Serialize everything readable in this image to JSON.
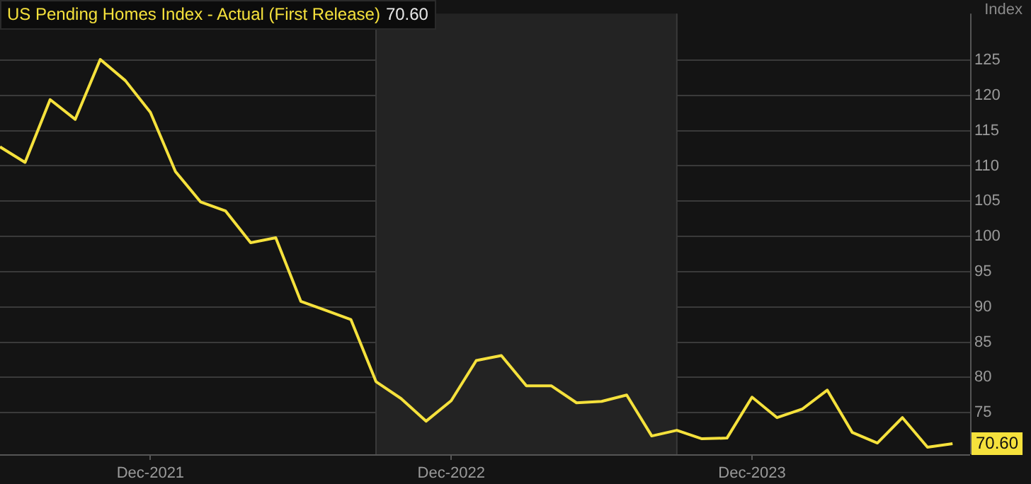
{
  "chart_data": {
    "type": "line",
    "title": "US Pending Homes Index - Actual (First Release)",
    "ylabel": "Index",
    "x": [
      "2021-06",
      "2021-07",
      "2021-08",
      "2021-09",
      "2021-10",
      "2021-11",
      "2021-12",
      "2022-01",
      "2022-02",
      "2022-03",
      "2022-04",
      "2022-05",
      "2022-06",
      "2022-07",
      "2022-08",
      "2022-09",
      "2022-10",
      "2022-11",
      "2022-12",
      "2023-01",
      "2023-02",
      "2023-03",
      "2023-04",
      "2023-05",
      "2023-06",
      "2023-07",
      "2023-08",
      "2023-09",
      "2023-10",
      "2023-11",
      "2023-12",
      "2024-01",
      "2024-02",
      "2024-03",
      "2024-04",
      "2024-05",
      "2024-06",
      "2024-07",
      "2024-08"
    ],
    "series": [
      {
        "color": "#f5e13c",
        "values": [
          112.7,
          110.5,
          119.4,
          116.6,
          125.1,
          122.1,
          117.6,
          109.2,
          104.9,
          103.6,
          99.1,
          99.8,
          90.8,
          89.5,
          88.2,
          79.4,
          77.0,
          73.8,
          76.7,
          82.4,
          83.1,
          78.8,
          78.8,
          76.4,
          76.6,
          77.5,
          71.7,
          72.5,
          71.3,
          71.4,
          77.2,
          74.3,
          75.5,
          78.2,
          72.2,
          70.7,
          74.3,
          70.1,
          70.6
        ]
      }
    ],
    "xlim": [
      "2021-06-01",
      "2024-08-22"
    ],
    "xticks": [
      {
        "value": "2021-12",
        "label": "Dec-2021"
      },
      {
        "value": "2022-12",
        "label": "Dec-2022"
      },
      {
        "value": "2023-12",
        "label": "Dec-2023"
      }
    ],
    "ylim": [
      69.1,
      131.6
    ],
    "yticks": [
      75,
      80,
      85,
      90,
      95,
      100,
      105,
      110,
      115,
      120,
      125
    ],
    "bands": [
      {
        "axis": "x",
        "from": "2022-09",
        "to": "2023-09",
        "color": "#232323"
      }
    ],
    "annotations": [
      "70.60",
      {
        "text": "70.60",
        "x": "2024-08",
        "y": 70.6
      }
    ],
    "grid": "y",
    "legend": false,
    "marker": "none",
    "line_style": "solid"
  }
}
